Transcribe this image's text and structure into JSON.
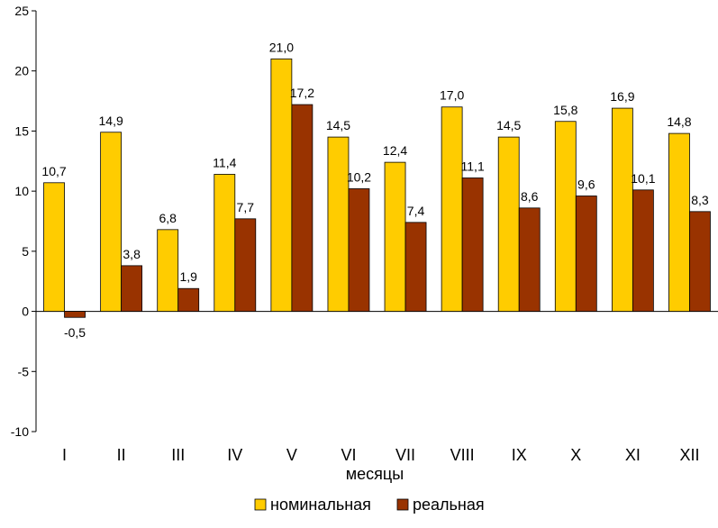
{
  "chart_data": {
    "type": "bar",
    "title": "",
    "xlabel": "месяцы",
    "ylabel": "",
    "categories": [
      "I",
      "II",
      "III",
      "IV",
      "V",
      "VI",
      "VII",
      "VIII",
      "IX",
      "X",
      "XI",
      "XII"
    ],
    "series": [
      {
        "name": "номинальная",
        "color": "#FFCC00",
        "values": [
          10.7,
          14.9,
          6.8,
          11.4,
          21.0,
          14.5,
          12.4,
          17.0,
          14.5,
          15.8,
          16.9,
          14.8
        ],
        "labels": [
          "10,7",
          "14,9",
          "6,8",
          "11,4",
          "21,0",
          "14,5",
          "12,4",
          "17,0",
          "14,5",
          "15,8",
          "16,9",
          "14,8"
        ]
      },
      {
        "name": "реальная",
        "color": "#993300",
        "values": [
          -0.5,
          3.8,
          1.9,
          7.7,
          17.2,
          10.2,
          7.4,
          11.1,
          8.6,
          9.6,
          10.1,
          8.3
        ],
        "labels": [
          "-0,5",
          "3,8",
          "1,9",
          "7,7",
          "17,2",
          "10,2",
          "7,4",
          "11,1",
          "8,6",
          "9,6",
          "10,1",
          "8,3"
        ]
      }
    ],
    "ylim": [
      -10,
      25
    ],
    "yticks": [
      -10,
      -5,
      0,
      5,
      10,
      15,
      20,
      25
    ],
    "grid": false,
    "legend_position": "bottom"
  }
}
